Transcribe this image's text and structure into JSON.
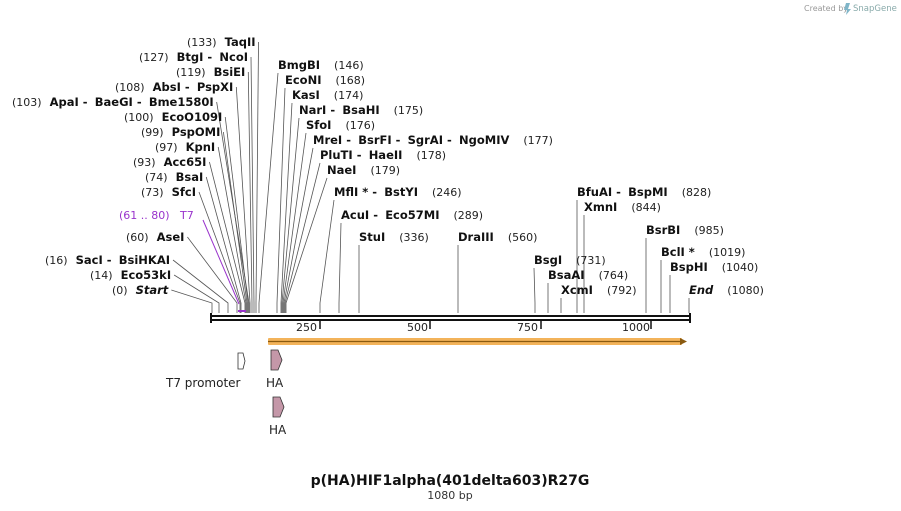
{
  "brand": {
    "created_by": "Created by",
    "name": "SnapGene"
  },
  "map": {
    "name": "p(HA)HIF1alpha(401delta603)R27G",
    "length_label": "1080 bp",
    "length": 1080
  },
  "axis_ticks": [
    "250",
    "500",
    "750",
    "1000"
  ],
  "primer": {
    "range": "(61 .. 80)",
    "name": "T7"
  },
  "sites": [
    {
      "pos": "(133)",
      "names": [
        "TaqII"
      ]
    },
    {
      "pos": "(127)",
      "names": [
        "BtgI",
        "NcoI"
      ]
    },
    {
      "pos": "(119)",
      "names": [
        "BsiEI"
      ]
    },
    {
      "pos": "(108)",
      "names": [
        "AbsI",
        "PspXI"
      ]
    },
    {
      "pos": "(103)",
      "names": [
        "ApaI",
        "BaeGI",
        "Bme1580I"
      ]
    },
    {
      "pos": "(100)",
      "names": [
        "EcoO109I"
      ]
    },
    {
      "pos": "(99)",
      "names": [
        "PspOMI"
      ]
    },
    {
      "pos": "(97)",
      "names": [
        "KpnI"
      ]
    },
    {
      "pos": "(93)",
      "names": [
        "Acc65I"
      ]
    },
    {
      "pos": "(74)",
      "names": [
        "BsaI"
      ]
    },
    {
      "pos": "(73)",
      "names": [
        "SfcI"
      ]
    },
    {
      "pos": "(60)",
      "names": [
        "AseI"
      ]
    },
    {
      "pos": "(16)",
      "names": [
        "SacI",
        "BsiHKAI"
      ]
    },
    {
      "pos": "(14)",
      "names": [
        "Eco53kI"
      ]
    },
    {
      "pos": "(0)",
      "names": [
        "Start"
      ]
    },
    {
      "pos": "(146)",
      "names": [
        "BmgBI"
      ]
    },
    {
      "pos": "(168)",
      "names": [
        "EcoNI"
      ]
    },
    {
      "pos": "(174)",
      "names": [
        "KasI"
      ]
    },
    {
      "pos": "(175)",
      "names": [
        "NarI",
        "BsaHI"
      ]
    },
    {
      "pos": "(176)",
      "names": [
        "SfoI"
      ]
    },
    {
      "pos": "(177)",
      "names": [
        "MreI",
        "BsrFI",
        "SgrAI",
        "NgoMIV"
      ]
    },
    {
      "pos": "(178)",
      "names": [
        "PluTI",
        "HaeII"
      ]
    },
    {
      "pos": "(179)",
      "names": [
        "NaeI"
      ]
    },
    {
      "pos": "(246)",
      "names": [
        "MflI *",
        "BstYI"
      ]
    },
    {
      "pos": "(289)",
      "names": [
        "AcuI",
        "Eco57MI"
      ]
    },
    {
      "pos": "(336)",
      "names": [
        "StuI"
      ]
    },
    {
      "pos": "(560)",
      "names": [
        "DraIII"
      ]
    },
    {
      "pos": "(731)",
      "names": [
        "BsgI"
      ]
    },
    {
      "pos": "(764)",
      "names": [
        "BsaAI"
      ]
    },
    {
      "pos": "(792)",
      "names": [
        "XcmI"
      ]
    },
    {
      "pos": "(828)",
      "names": [
        "BfuAI",
        "BspMI"
      ]
    },
    {
      "pos": "(844)",
      "names": [
        "XmnI"
      ]
    },
    {
      "pos": "(985)",
      "names": [
        "BsrBI"
      ]
    },
    {
      "pos": "(1019)",
      "names": [
        "BclI *"
      ]
    },
    {
      "pos": "(1040)",
      "names": [
        "BspHI"
      ]
    },
    {
      "pos": "(1080)",
      "names": [
        "End"
      ]
    }
  ],
  "features": [
    {
      "name": "T7 promoter",
      "color": "#ffffff"
    },
    {
      "name": "HA",
      "color": "#c497a8"
    },
    {
      "name": "HA",
      "color": "#c497a8"
    }
  ],
  "colors": {
    "orf": "#f3b35a",
    "primer": "#9933cc",
    "backbone": "#111111"
  }
}
